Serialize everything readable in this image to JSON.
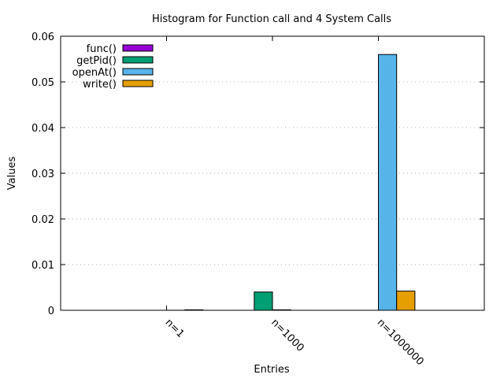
{
  "chart_data": {
    "type": "bar",
    "title": "Histogram for Function call and 4 System Calls",
    "xlabel": "Entries",
    "ylabel": "Values",
    "ylim": [
      0,
      0.06
    ],
    "yticks": [
      "0",
      "0.01",
      "0.02",
      "0.03",
      "0.04",
      "0.05",
      "0.06"
    ],
    "categories": [
      "n=1",
      "n=1000",
      "n=1000000"
    ],
    "grid": "horizontal dotted",
    "legend_position": "top-left",
    "series": [
      {
        "name": "func()",
        "color": "#9400d3",
        "values": [
          2e-06,
          2e-06,
          2e-06
        ]
      },
      {
        "name": "getPid()",
        "color": "#009e73",
        "values": [
          2e-06,
          0.004,
          2e-06
        ]
      },
      {
        "name": "openAt()",
        "color": "#56b4e9",
        "values": [
          1e-05,
          0.0001,
          0.056
        ]
      },
      {
        "name": "write()",
        "color": "#e69f00",
        "values": [
          0.0001,
          2e-06,
          0.0042
        ]
      }
    ]
  }
}
